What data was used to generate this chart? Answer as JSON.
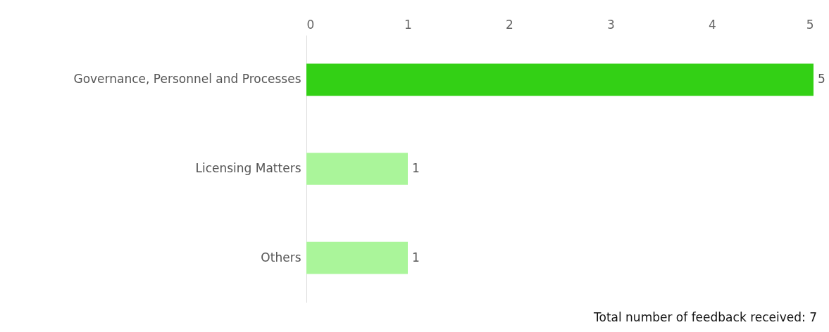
{
  "chart_data": {
    "type": "bar",
    "orientation": "horizontal",
    "categories": [
      "Governance, Personnel and Processes",
      "Licensing Matters",
      "Others"
    ],
    "values": [
      5,
      1,
      1
    ],
    "colors": [
      "#33d015",
      "#aaf59a",
      "#aaf59a"
    ],
    "xlim": [
      0,
      5
    ],
    "xticks": [
      0,
      1,
      2,
      3,
      4,
      5
    ],
    "grid": false,
    "data_labels": true,
    "annotations": [
      "Total number of feedback received: 7"
    ]
  }
}
